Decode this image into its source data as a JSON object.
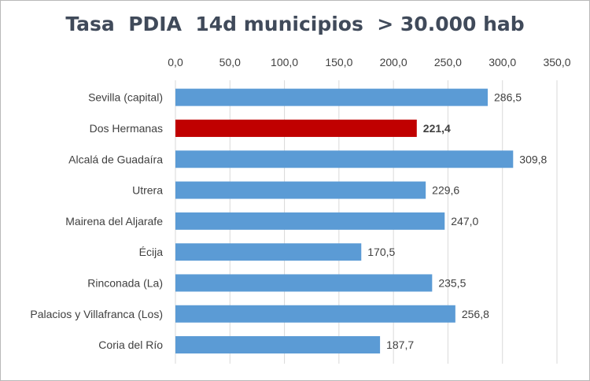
{
  "chart_data": {
    "type": "bar",
    "orientation": "horizontal",
    "title": "Tasa  PDIA  14d municipios  > 30.000 hab",
    "xlabel": "",
    "ylabel": "",
    "xlim": [
      0,
      350
    ],
    "x_ticks": [
      "0,0",
      "50,0",
      "100,0",
      "150,0",
      "200,0",
      "250,0",
      "300,0",
      "350,0"
    ],
    "x_axis_position": "top",
    "grid": true,
    "legend": "none",
    "categories": [
      "Sevilla (capital)",
      "Dos Hermanas",
      "Alcalá de Guadaíra",
      "Utrera",
      "Mairena del Aljarafe",
      "Écija",
      "Rinconada (La)",
      "Palacios y Villafranca (Los)",
      "Coria del Río"
    ],
    "values": [
      286.5,
      221.4,
      309.8,
      229.6,
      247.0,
      170.5,
      235.5,
      256.8,
      187.7
    ],
    "value_labels": [
      "286,5",
      "221,4",
      "309,8",
      "229,6",
      "247,0",
      "170,5",
      "235,5",
      "256,8",
      "187,7"
    ],
    "highlight_index": 1,
    "colors": {
      "bar": "#5b9bd5",
      "highlight": "#c00000",
      "grid": "#d9d9d9"
    }
  }
}
